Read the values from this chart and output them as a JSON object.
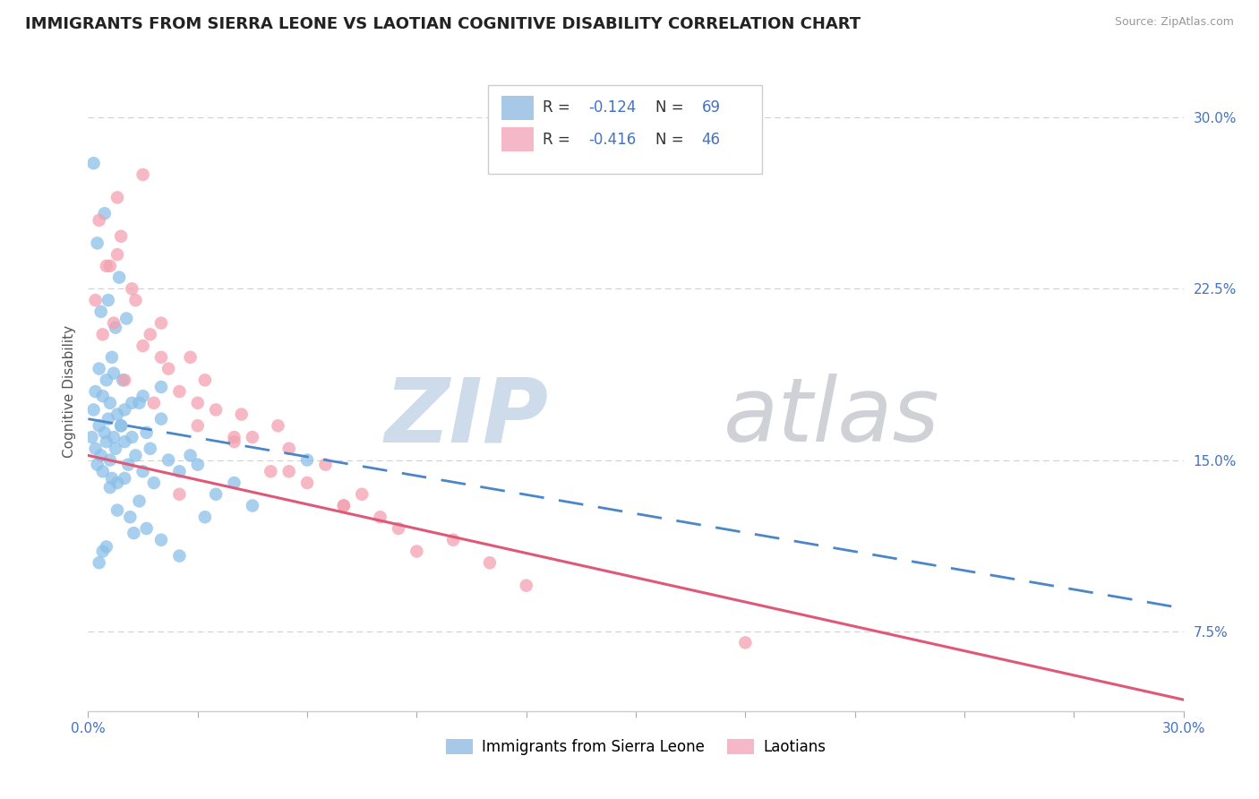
{
  "title": "IMMIGRANTS FROM SIERRA LEONE VS LAOTIAN COGNITIVE DISABILITY CORRELATION CHART",
  "source": "Source: ZipAtlas.com",
  "ylabel": "Cognitive Disability",
  "x_min": 0.0,
  "x_max": 30.0,
  "y_min": 4.0,
  "y_max": 32.0,
  "right_yticks": [
    7.5,
    15.0,
    22.5,
    30.0
  ],
  "series1_color": "#8bbfe8",
  "series2_color": "#f4a0b0",
  "series1_alpha": 0.75,
  "series2_alpha": 0.75,
  "trendline1_color": "#4a86c8",
  "trendline2_color": "#e05878",
  "trendline1_start_y": 16.8,
  "trendline1_end_y": 8.5,
  "trendline2_start_y": 15.2,
  "trendline2_end_y": 4.5,
  "scatter1_x": [
    0.1,
    0.15,
    0.2,
    0.2,
    0.25,
    0.3,
    0.3,
    0.35,
    0.4,
    0.4,
    0.45,
    0.5,
    0.5,
    0.55,
    0.6,
    0.6,
    0.65,
    0.7,
    0.7,
    0.75,
    0.8,
    0.8,
    0.9,
    1.0,
    1.0,
    1.1,
    1.2,
    1.3,
    1.4,
    1.5,
    1.6,
    1.7,
    1.8,
    2.0,
    2.2,
    2.5,
    2.8,
    3.0,
    3.5,
    4.0,
    0.15,
    0.25,
    0.35,
    0.45,
    0.55,
    0.65,
    0.75,
    0.85,
    0.95,
    1.05,
    1.15,
    1.25,
    1.4,
    1.6,
    2.0,
    2.5,
    3.2,
    4.5,
    1.2,
    0.4,
    0.3,
    0.5,
    0.6,
    0.8,
    1.0,
    1.5,
    2.0,
    6.0,
    0.9
  ],
  "scatter1_y": [
    16.0,
    17.2,
    15.5,
    18.0,
    14.8,
    16.5,
    19.0,
    15.2,
    17.8,
    14.5,
    16.2,
    15.8,
    18.5,
    16.8,
    15.0,
    17.5,
    14.2,
    16.0,
    18.8,
    15.5,
    17.0,
    14.0,
    16.5,
    15.8,
    17.2,
    14.8,
    16.0,
    15.2,
    17.5,
    14.5,
    16.2,
    15.5,
    14.0,
    16.8,
    15.0,
    14.5,
    15.2,
    14.8,
    13.5,
    14.0,
    28.0,
    24.5,
    21.5,
    25.8,
    22.0,
    19.5,
    20.8,
    23.0,
    18.5,
    21.2,
    12.5,
    11.8,
    13.2,
    12.0,
    11.5,
    10.8,
    12.5,
    13.0,
    17.5,
    11.0,
    10.5,
    11.2,
    13.8,
    12.8,
    14.2,
    17.8,
    18.2,
    15.0,
    16.5
  ],
  "scatter2_x": [
    0.2,
    0.4,
    0.5,
    0.7,
    0.8,
    1.0,
    1.2,
    1.5,
    1.8,
    2.0,
    2.5,
    3.0,
    3.5,
    4.0,
    4.5,
    5.0,
    5.5,
    6.0,
    7.0,
    8.0,
    2.0,
    2.8,
    3.2,
    4.2,
    5.2,
    6.5,
    7.5,
    8.5,
    10.0,
    11.0,
    0.3,
    0.6,
    0.9,
    1.3,
    1.7,
    2.2,
    3.0,
    4.0,
    5.5,
    7.0,
    9.0,
    12.0,
    0.8,
    1.5,
    2.5,
    18.0
  ],
  "scatter2_y": [
    22.0,
    20.5,
    23.5,
    21.0,
    24.0,
    18.5,
    22.5,
    20.0,
    17.5,
    19.5,
    18.0,
    16.5,
    17.2,
    15.8,
    16.0,
    14.5,
    15.5,
    14.0,
    13.0,
    12.5,
    21.0,
    19.5,
    18.5,
    17.0,
    16.5,
    14.8,
    13.5,
    12.0,
    11.5,
    10.5,
    25.5,
    23.5,
    24.8,
    22.0,
    20.5,
    19.0,
    17.5,
    16.0,
    14.5,
    13.0,
    11.0,
    9.5,
    26.5,
    27.5,
    13.5,
    7.0
  ],
  "bottom_labels": [
    "Immigrants from Sierra Leone",
    "Laotians"
  ],
  "grid_color": "#d0d0d0",
  "bg_color": "#ffffff",
  "watermark_zip_color": "#c8d8e8",
  "watermark_atlas_color": "#c8c8d0"
}
